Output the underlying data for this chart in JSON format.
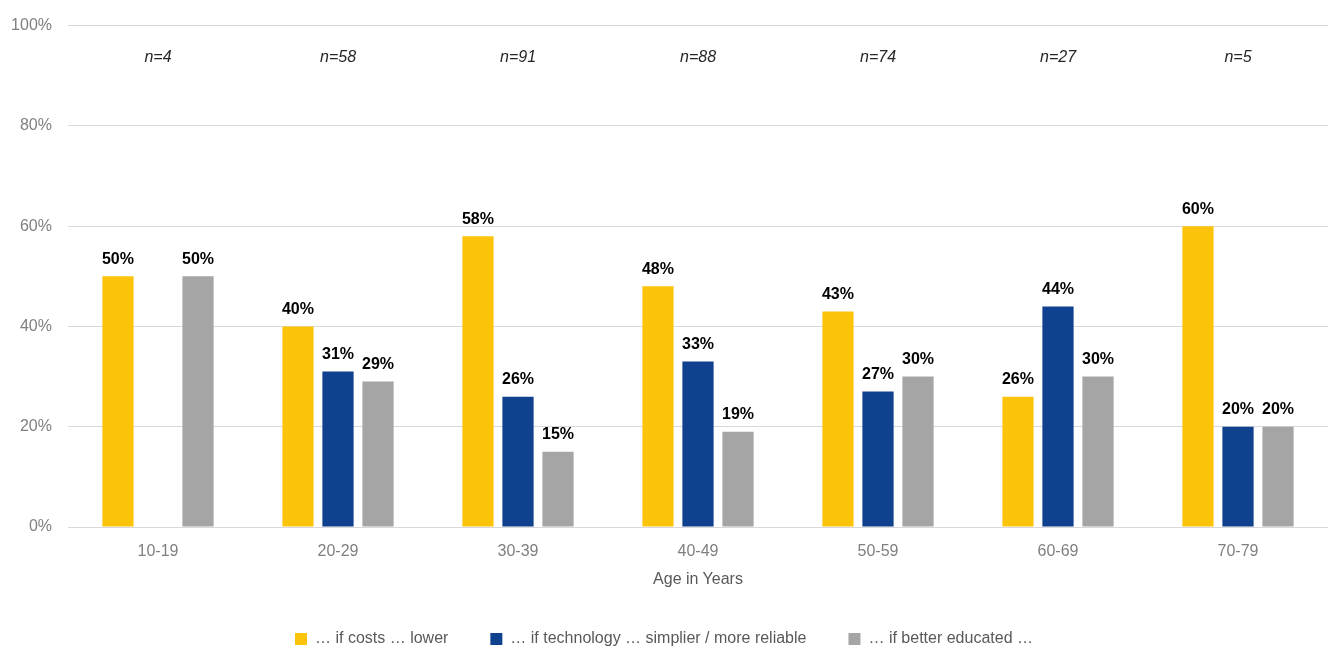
{
  "chart_data": {
    "type": "bar",
    "categories": [
      "10-19",
      "20-29",
      "30-39",
      "40-49",
      "50-59",
      "60-69",
      "70-79"
    ],
    "series": [
      {
        "name": "… if costs … lower",
        "color": "#fcc30b",
        "values": [
          50,
          40,
          58,
          48,
          43,
          26,
          60
        ],
        "value_labels": [
          "50%",
          "40%",
          "58%",
          "48%",
          "43%",
          "26%",
          "60%"
        ]
      },
      {
        "name": "… if technology … simplier / more reliable",
        "color": "#0f418e",
        "values": [
          null,
          31,
          26,
          33,
          27,
          44,
          20
        ],
        "value_labels": [
          null,
          "31%",
          "26%",
          "33%",
          "27%",
          "44%",
          "20%"
        ]
      },
      {
        "name": "… if better educated …",
        "color": "#a5a5a5",
        "values": [
          50,
          29,
          15,
          19,
          30,
          30,
          20
        ],
        "value_labels": [
          "50%",
          "29%",
          "15%",
          "19%",
          "30%",
          "30%",
          "20%"
        ]
      }
    ],
    "xlabel": "Age in Years",
    "ylim": [
      0,
      100
    ],
    "yticks": [
      {
        "value": 0,
        "label": "0%"
      },
      {
        "value": 20,
        "label": "20%"
      },
      {
        "value": 40,
        "label": "40%"
      },
      {
        "value": 60,
        "label": "60%"
      },
      {
        "value": 80,
        "label": "80%"
      },
      {
        "value": 100,
        "label": "100%"
      }
    ],
    "annotations": [
      "n=4",
      "n=58",
      "n=91",
      "n=88",
      "n=74",
      "n=27",
      "n=5"
    ],
    "grid": "y",
    "legend": "bottom"
  }
}
